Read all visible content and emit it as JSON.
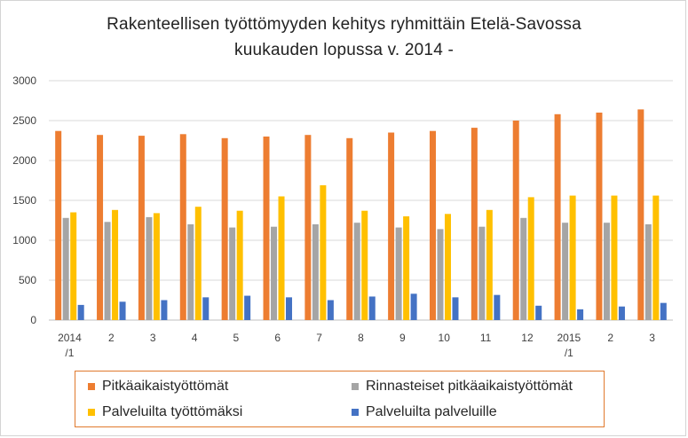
{
  "chart_data": {
    "type": "bar",
    "title_line1": "Rakenteellisen  työttömyyden kehitys ryhmittäin Etelä-Savossa",
    "title_line2": "kuukauden lopussa v. 2014 -",
    "categories": [
      "2014/1",
      "2",
      "3",
      "4",
      "5",
      "6",
      "7",
      "8",
      "9",
      "10",
      "11",
      "12",
      "2015/1",
      "2",
      "3"
    ],
    "category_labels": [
      [
        "2014",
        "/1"
      ],
      [
        "2"
      ],
      [
        "3"
      ],
      [
        "4"
      ],
      [
        "5"
      ],
      [
        "6"
      ],
      [
        "7"
      ],
      [
        "8"
      ],
      [
        "9"
      ],
      [
        "10"
      ],
      [
        "11"
      ],
      [
        "12"
      ],
      [
        "2015",
        "/1"
      ],
      [
        "2"
      ],
      [
        "3"
      ]
    ],
    "ylim": [
      0,
      3000
    ],
    "yticks": [
      "0",
      "500",
      "1000",
      "1500",
      "2000",
      "2500",
      "3000"
    ],
    "grid": true,
    "legend_position": "bottom",
    "series": [
      {
        "name": "Pitkäaikaistyöttömät",
        "color": "#ed7d31",
        "values": [
          2370,
          2320,
          2310,
          2330,
          2280,
          2300,
          2320,
          2280,
          2350,
          2370,
          2410,
          2500,
          2580,
          2600,
          2640
        ]
      },
      {
        "name": "Rinnasteiset pitkäaikaistyöttömät",
        "color": "#a5a5a5",
        "values": [
          1280,
          1230,
          1290,
          1200,
          1160,
          1170,
          1200,
          1220,
          1160,
          1140,
          1170,
          1280,
          1220,
          1220,
          1200
        ]
      },
      {
        "name": "Palveluilta työttömäksi",
        "color": "#ffc000",
        "values": [
          1350,
          1380,
          1340,
          1420,
          1370,
          1550,
          1690,
          1370,
          1300,
          1330,
          1380,
          1540,
          1560,
          1560,
          1560
        ]
      },
      {
        "name": "Palveluilta palveluille",
        "color": "#4472c4",
        "values": [
          190,
          230,
          250,
          285,
          305,
          285,
          250,
          295,
          330,
          285,
          315,
          180,
          135,
          170,
          215
        ]
      }
    ]
  },
  "legend_layout": [
    {
      "series_index": 0
    },
    {
      "series_index": 1
    },
    {
      "series_index": 2
    },
    {
      "series_index": 3
    }
  ],
  "colors": {
    "grid": "#d9d9d9",
    "axis": "#bfbfbf",
    "legend_border": "#e07a2e",
    "frame_border": "#d4d4d4"
  }
}
